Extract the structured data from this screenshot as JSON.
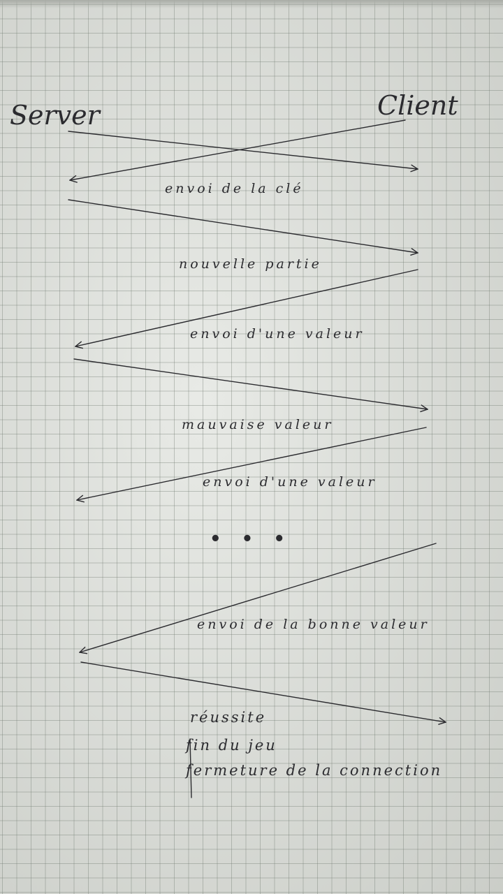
{
  "diagram": {
    "participants": {
      "server": "Server",
      "client": "Client"
    },
    "messages": [
      {
        "label": "envoi de la clé"
      },
      {
        "label": "nouvelle partie"
      },
      {
        "label": "envoi d'une valeur"
      },
      {
        "label": "mauvaise valeur"
      },
      {
        "label": "envoi d'une valeur"
      },
      {
        "label": "envoi de la bonne valeur"
      }
    ],
    "ellipsis": "• • •",
    "final_notes": [
      "réussite",
      "fin du jeu",
      "fermeture de la connection"
    ],
    "colors": {
      "ink": "#2b2b2f",
      "paper": "#dcdfd9",
      "grid": "#6e786e"
    }
  }
}
